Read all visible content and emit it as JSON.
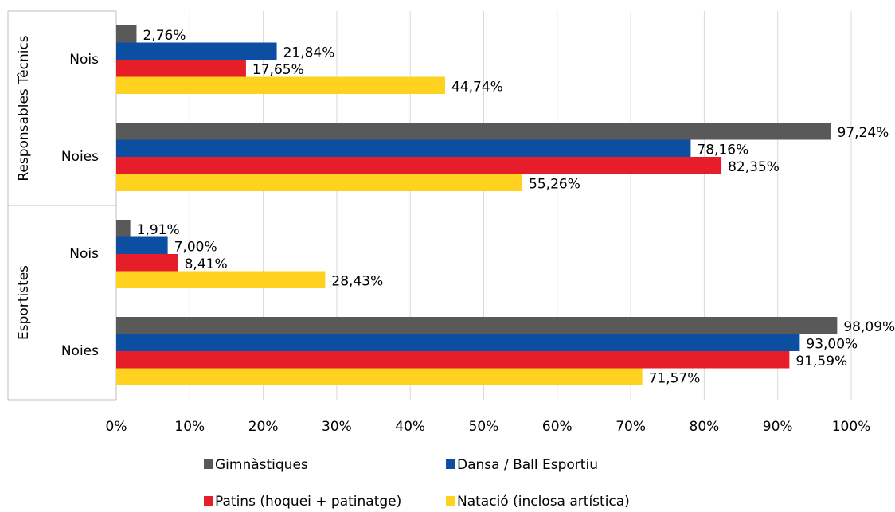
{
  "chart_data": {
    "type": "hbar-grouped",
    "groups": [
      {
        "name": "Responsables Tècnics",
        "categories": [
          "Nois",
          "Noies"
        ]
      },
      {
        "name": "Esportistes",
        "categories": [
          "Nois",
          "Noies"
        ]
      }
    ],
    "series": [
      {
        "name": "Gimnàstiques",
        "color": "#595959",
        "values": [
          2.76,
          97.24,
          1.91,
          98.09
        ],
        "value_labels": [
          "2,76%",
          "97,24%",
          "1,91%",
          "98,09%"
        ]
      },
      {
        "name": "Dansa / Ball Esportiu",
        "color": "#0b4ea2",
        "values": [
          21.84,
          78.16,
          7.0,
          93.0
        ],
        "value_labels": [
          "21,84%",
          "78,16%",
          "7,00%",
          "93,00%"
        ]
      },
      {
        "name": "Patins (hoquei + patinatge)",
        "color": "#e61e2a",
        "values": [
          17.65,
          82.35,
          8.41,
          91.59
        ],
        "value_labels": [
          "17,65%",
          "82,35%",
          "8,41%",
          "91,59%"
        ]
      },
      {
        "name": "Natació (inclosa artística)",
        "color": "#ffd21f",
        "values": [
          44.74,
          55.26,
          28.43,
          71.57
        ],
        "value_labels": [
          "44,74%",
          "55,26%",
          "28,43%",
          "71,57%"
        ]
      }
    ],
    "xlim": [
      0,
      100
    ],
    "xticks": [
      {
        "value": 0,
        "label": "0%"
      },
      {
        "value": 10,
        "label": "10%"
      },
      {
        "value": 20,
        "label": "20%"
      },
      {
        "value": 30,
        "label": "30%"
      },
      {
        "value": 40,
        "label": "40%"
      },
      {
        "value": 50,
        "label": "50%"
      },
      {
        "value": 60,
        "label": "60%"
      },
      {
        "value": 70,
        "label": "70%"
      },
      {
        "value": 80,
        "label": "80%"
      },
      {
        "value": 90,
        "label": "90%"
      },
      {
        "value": 100,
        "label": "100%"
      }
    ],
    "grid": true,
    "legend": "bottom"
  }
}
